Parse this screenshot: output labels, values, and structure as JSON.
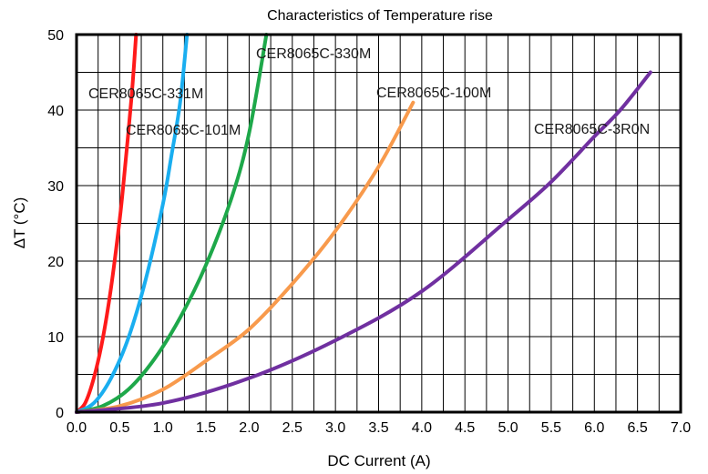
{
  "chart_data": {
    "type": "line",
    "title": "Characteristics of Temperature rise",
    "xlabel": "DC Current (A)",
    "ylabel": "ΔT (°C)",
    "xlim": [
      0,
      7
    ],
    "ylim": [
      0,
      50
    ],
    "grid": true,
    "x_ticks": [
      "0.0",
      "0.5",
      "1.0",
      "1.5",
      "2.0",
      "2.5",
      "3.0",
      "3.5",
      "4.0",
      "4.5",
      "5.0",
      "5.5",
      "6.0",
      "6.5",
      "7.0"
    ],
    "y_ticks": [
      "0",
      "10",
      "20",
      "30",
      "40",
      "50"
    ],
    "series": [
      {
        "name": "CER8065C-331M",
        "color": "#ff1a1a",
        "x": [
          0,
          0.1,
          0.2,
          0.3,
          0.4,
          0.5,
          0.55,
          0.6,
          0.65,
          0.69
        ],
        "y": [
          0,
          1.2,
          4.5,
          9.5,
          16.5,
          25.5,
          31,
          37,
          43.5,
          50
        ]
      },
      {
        "name": "CER8065C-101M",
        "color": "#1aaef0",
        "x": [
          0,
          0.2,
          0.4,
          0.6,
          0.8,
          1.0,
          1.1,
          1.2,
          1.28
        ],
        "y": [
          0,
          1.2,
          4.5,
          9.8,
          17.5,
          27.5,
          34,
          41,
          50
        ]
      },
      {
        "name": "CER8065C-330M",
        "color": "#1ea84a",
        "x": [
          0,
          0.3,
          0.6,
          0.9,
          1.2,
          1.5,
          1.8,
          2.0,
          2.2
        ],
        "y": [
          0,
          0.8,
          3,
          7,
          12.5,
          19.5,
          28.5,
          37,
          50
        ]
      },
      {
        "name": "CER8065C-100M",
        "color": "#f89a4c",
        "x": [
          0,
          0.5,
          1.0,
          1.5,
          2.0,
          2.5,
          3.0,
          3.5,
          3.9
        ],
        "y": [
          0,
          0.8,
          3,
          6.8,
          11,
          17,
          24,
          32.5,
          41
        ]
      },
      {
        "name": "CER8065C-3R0N",
        "color": "#7030a0",
        "x": [
          0,
          1.0,
          2.0,
          3.0,
          4.0,
          5.0,
          5.5,
          6.0,
          6.3,
          6.65
        ],
        "y": [
          0,
          1.2,
          4.5,
          9.5,
          16,
          25.5,
          30.5,
          36.5,
          40,
          45
        ]
      }
    ]
  }
}
